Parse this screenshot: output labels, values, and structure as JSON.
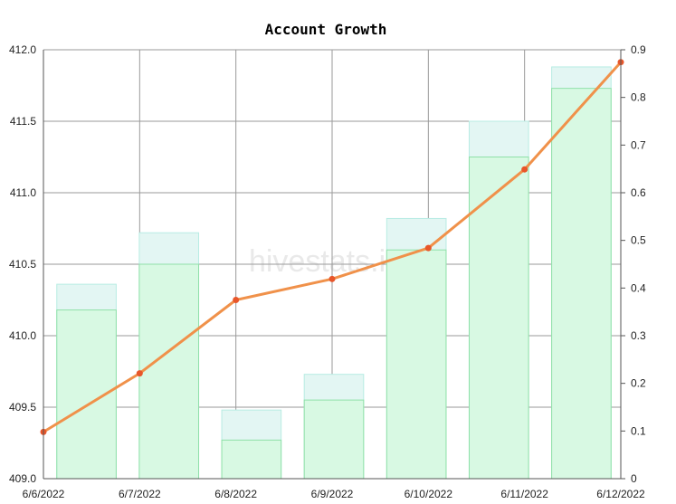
{
  "chart_data": {
    "type": "bar",
    "title": "Account Growth",
    "watermark": "hivestats.io",
    "categories": [
      "6/6/2022",
      "6/7/2022",
      "6/8/2022",
      "6/9/2022",
      "6/10/2022",
      "6/11/2022",
      "6/12/2022"
    ],
    "y_left": {
      "min": 409.0,
      "max": 412.0,
      "ticks": [
        "409.0",
        "409.5",
        "410.0",
        "410.5",
        "411.0",
        "411.5",
        "412.0"
      ]
    },
    "y_right": {
      "min": 0,
      "max": 0.9,
      "ticks": [
        "0",
        "0.1",
        "0.2",
        "0.3",
        "0.4",
        "0.5",
        "0.6",
        "0.7",
        "0.8",
        "0.9"
      ]
    },
    "series": [
      {
        "kind": "bar-back",
        "axis": "left",
        "values": [
          410.36,
          410.72,
          409.48,
          409.73,
          410.82,
          411.5,
          411.88
        ],
        "color": "#e3f6f3",
        "stroke": "#b8ece3"
      },
      {
        "kind": "bar-front",
        "axis": "left",
        "values": [
          410.18,
          410.5,
          409.27,
          409.55,
          410.6,
          411.25,
          411.73
        ],
        "color": "#d8f9e3",
        "stroke": "#8fe0a8"
      },
      {
        "kind": "line",
        "axis": "right",
        "values": [
          0.098,
          0.221,
          0.375,
          0.419,
          0.484,
          0.649,
          0.874
        ],
        "color": "#f0914a",
        "marker": "#e8562a"
      }
    ],
    "grid": true
  }
}
